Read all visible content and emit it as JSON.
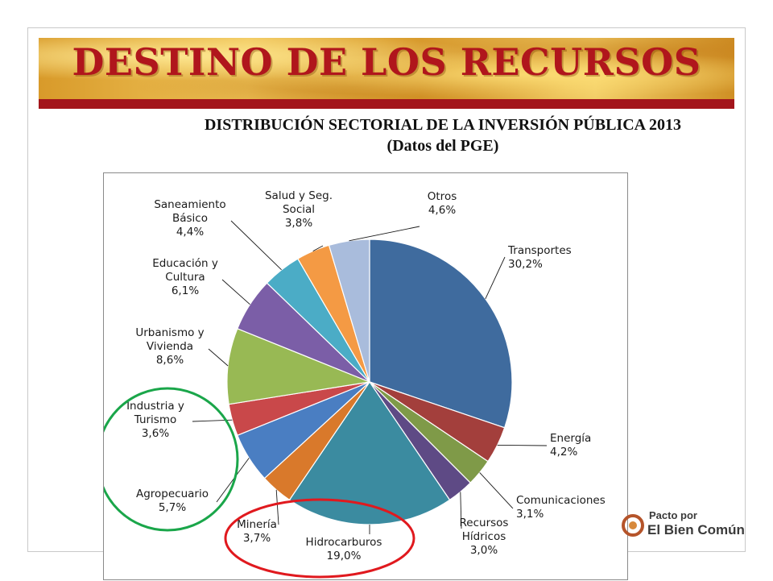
{
  "slide": {
    "title": "DESTINO DE LOS RECURSOS",
    "subtitle_line1": "DISTRIBUCIÓN SECTORIAL DE LA INVERSIÓN PÚBLICA 2013",
    "subtitle_line2": "(Datos del PGE)",
    "logo_line1": "Pacto por",
    "logo_line2": "El Bien Común"
  },
  "chart_data": {
    "type": "pie",
    "start_angle_deg": 0,
    "direction": "clockwise",
    "slices": [
      {
        "label": "Transportes",
        "value": 30.2,
        "value_label": "30,2%",
        "color": "#3f6b9e"
      },
      {
        "label": "Energía",
        "value": 4.2,
        "value_label": "4,2%",
        "color": "#a33f3c"
      },
      {
        "label": "Comunicaciones",
        "value": 3.1,
        "value_label": "3,1%",
        "color": "#7f9a48"
      },
      {
        "label": "Recursos Hídricos",
        "value": 3.0,
        "value_label": "3,0%",
        "color": "#5e4a85"
      },
      {
        "label": "Hidrocarburos",
        "value": 19.0,
        "value_label": "19,0%",
        "color": "#3b8ba0"
      },
      {
        "label": "Minería",
        "value": 3.7,
        "value_label": "3,7%",
        "color": "#d9792b"
      },
      {
        "label": "Agropecuario",
        "value": 5.7,
        "value_label": "5,7%",
        "color": "#4a7ec2"
      },
      {
        "label": "Industria y Turismo",
        "value": 3.6,
        "value_label": "3,6%",
        "color": "#c9484a"
      },
      {
        "label": "Urbanismo y Vivienda",
        "value": 8.6,
        "value_label": "8,6%",
        "color": "#98b954"
      },
      {
        "label": "Educación y Cultura",
        "value": 6.1,
        "value_label": "6,1%",
        "color": "#7b5ea7"
      },
      {
        "label": "Saneamiento Básico",
        "value": 4.4,
        "value_label": "4,4%",
        "color": "#4bacc6"
      },
      {
        "label": "Salud y Seg. Social",
        "value": 3.8,
        "value_label": "3,8%",
        "color": "#f49a44"
      },
      {
        "label": "Otros",
        "value": 4.6,
        "value_label": "4,6%",
        "color": "#a9bcdc"
      }
    ],
    "label_lines": {
      "Transportes": [
        "Transportes",
        "30,2%"
      ],
      "Energía": [
        "Energía",
        "4,2%"
      ],
      "Comunicaciones": [
        "Comunicaciones",
        "3,1%"
      ],
      "Recursos Hídricos": [
        "Recursos",
        "Hídricos",
        "3,0%"
      ],
      "Hidrocarburos": [
        "Hidrocarburos",
        "19,0%"
      ],
      "Minería": [
        "Minería",
        "3,7%"
      ],
      "Agropecuario": [
        "Agropecuario",
        "5,7%"
      ],
      "Industria y Turismo": [
        "Industria y",
        "Turismo",
        "3,6%"
      ],
      "Urbanismo y Vivienda": [
        "Urbanismo y",
        "Vivienda",
        "8,6%"
      ],
      "Educación y Cultura": [
        "Educación y",
        "Cultura",
        "6,1%"
      ],
      "Saneamiento Básico": [
        "Saneamiento",
        "Básico",
        "4,4%"
      ],
      "Salud y Seg. Social": [
        "Salud y Seg.",
        "Social",
        "3,8%"
      ],
      "Otros": [
        "Otros",
        "4,6%"
      ]
    },
    "highlights": [
      {
        "covers": [
          "Industria y Turismo",
          "Agropecuario"
        ],
        "color": "#1aa64a",
        "shape": "ellipse"
      },
      {
        "covers": [
          "Hidrocarburos"
        ],
        "color": "#e0191e",
        "shape": "ellipse"
      }
    ]
  }
}
